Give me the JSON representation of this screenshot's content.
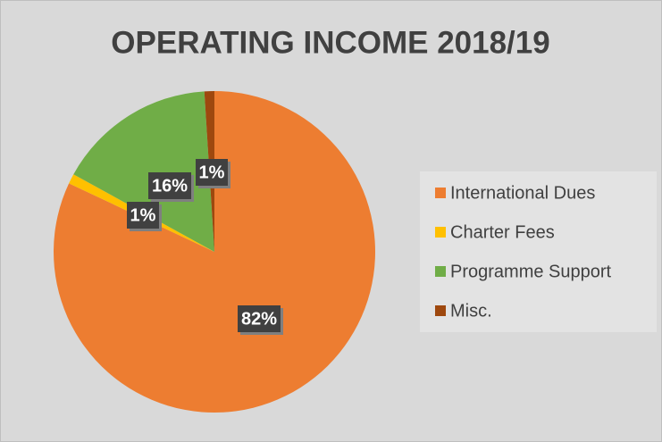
{
  "chart_data": {
    "type": "pie",
    "title": "OPERATING INCOME 2018/19",
    "categories": [
      "International Dues",
      "Charter Fees",
      "Programme Support",
      "Misc."
    ],
    "values": [
      82,
      1,
      16,
      1
    ],
    "value_labels": [
      "82%",
      "1%",
      "16%",
      "1%"
    ],
    "colors": [
      "#ed7d31",
      "#ffc000",
      "#70ad47",
      "#9e480e"
    ],
    "legend": "right"
  }
}
